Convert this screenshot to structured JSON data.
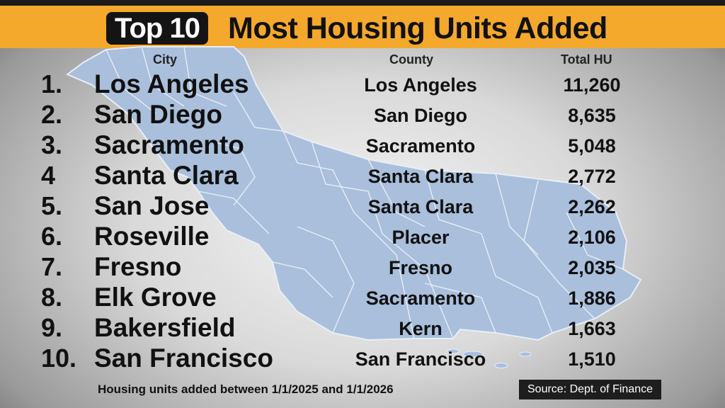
{
  "header": {
    "badge": "Top 10",
    "title": "Most Housing Units Added"
  },
  "columns": {
    "city": "City",
    "county": "County",
    "total": "Total HU"
  },
  "rows": [
    {
      "rank": "1.",
      "city": "Los Angeles",
      "county": "Los Angeles",
      "total": "11,260"
    },
    {
      "rank": "2.",
      "city": "San Diego",
      "county": "San Diego",
      "total": "8,635"
    },
    {
      "rank": "3.",
      "city": "Sacramento",
      "county": "Sacramento",
      "total": "5,048"
    },
    {
      "rank": "4",
      "city": "Santa Clara",
      "county": "Santa Clara",
      "total": "2,772"
    },
    {
      "rank": "5.",
      "city": "San Jose",
      "county": "Santa Clara",
      "total": "2,262"
    },
    {
      "rank": "6.",
      "city": "Roseville",
      "county": "Placer",
      "total": "2,106"
    },
    {
      "rank": "7.",
      "city": "Fresno",
      "county": "Fresno",
      "total": "2,035"
    },
    {
      "rank": "8.",
      "city": "Elk Grove",
      "county": "Sacramento",
      "total": "1,886"
    },
    {
      "rank": "9.",
      "city": "Bakersfield",
      "county": "Kern",
      "total": "1,663"
    },
    {
      "rank": "10.",
      "city": "San Francisco",
      "county": "San Francisco",
      "total": "1,510"
    }
  ],
  "footer": {
    "note": "Housing units added between 1/1/2025 and 1/1/2026",
    "source": "Source: Dept. of Finance"
  },
  "colors": {
    "banner": "#f4a82c",
    "map_fill": "#a9bfdc",
    "map_border": "#e8eef7"
  }
}
